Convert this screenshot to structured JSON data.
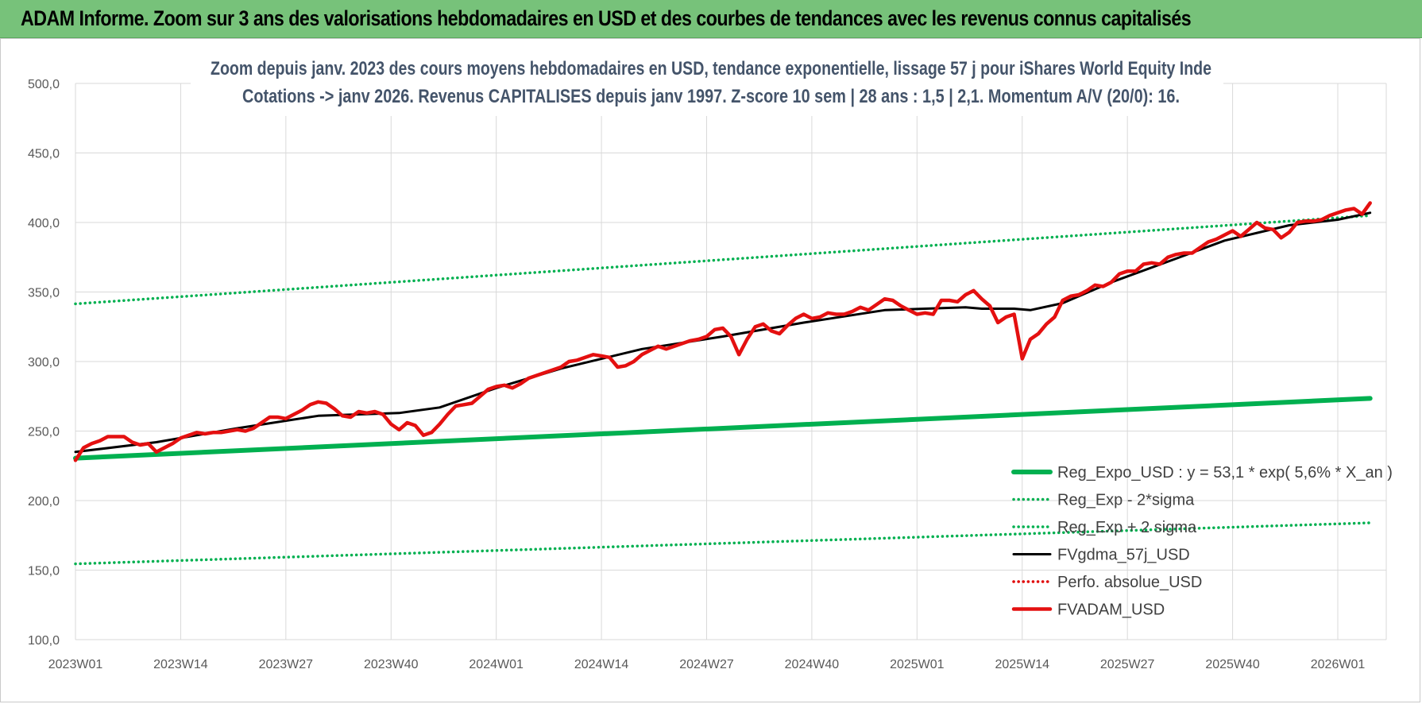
{
  "banner": {
    "title": "ADAM Informe. Zoom sur 3 ans des valorisations hebdomadaires en USD et des courbes de tendances avec les revenus connus capitalisés"
  },
  "colors": {
    "banner_bg": "#77c27a",
    "reg_expo": "#00b050",
    "fv_gdma": "#000000",
    "perfo_abs": "#e00000",
    "fv_adam": "#e41010",
    "title_text": "#44546a"
  },
  "chart_data": {
    "type": "line",
    "title_lines": [
      "Zoom depuis janv. 2023 des cours moyens hebdomadaires en USD, tendance exponentielle, lissage 57 j pour iShares World Equity Inde",
      "Cotations -> janv 2026. Revenus CAPITALISES depuis janv 1997. Z-score 10 sem | 28 ans : 1,5 | 2,1. Momentum A/V (20/0): 16."
    ],
    "ylim": [
      100,
      500
    ],
    "y_ticks": [
      "500,0",
      "450,0",
      "400,0",
      "350,0",
      "300,0",
      "250,0",
      "200,0",
      "150,0",
      "100,0"
    ],
    "y_tick_values": [
      500,
      450,
      400,
      350,
      300,
      250,
      200,
      150,
      100
    ],
    "x_ticks": [
      "2023W01",
      "2023W14",
      "2023W27",
      "2023W40",
      "2024W01",
      "2024W14",
      "2024W27",
      "2024W40",
      "2025W01",
      "2025W14",
      "2025W27",
      "2025W40",
      "2026W01"
    ],
    "x_tick_weeks": [
      0,
      13,
      26,
      39,
      52,
      65,
      78,
      91,
      104,
      117,
      130,
      143,
      156
    ],
    "n_weeks": 160,
    "grid": true,
    "legend_position": "bottom-right",
    "series": [
      {
        "name": "Reg_Expo_USD : y = 53,1 * exp( 5,6% *  X_an )",
        "style": "thick-solid",
        "color": "#00b050",
        "x": [
          0,
          160
        ],
        "values": [
          230.5,
          273.5
        ]
      },
      {
        "name": "Reg_Exp - 2*sigma",
        "style": "dotted",
        "color": "#00b050",
        "x": [
          0,
          160
        ],
        "values": [
          154.5,
          184.0
        ]
      },
      {
        "name": "Reg_Exp + 2 sigma",
        "style": "dotted",
        "color": "#00b050",
        "x": [
          0,
          160
        ],
        "values": [
          341.5,
          405.0
        ]
      },
      {
        "name": "FVgdma_57j_USD",
        "style": "solid",
        "color": "#000000",
        "x": [
          0,
          10,
          20,
          30,
          40,
          45,
          52,
          60,
          70,
          80,
          90,
          100,
          110,
          112,
          116,
          118,
          122,
          128,
          136,
          142,
          150,
          156,
          160
        ],
        "values": [
          235,
          242,
          252,
          261,
          263,
          267,
          281,
          295,
          309,
          318,
          328,
          337,
          339,
          338,
          338,
          337,
          342,
          357,
          374,
          387,
          398,
          402,
          407
        ]
      },
      {
        "name": "Perfo. absolue_USD",
        "style": "dotted",
        "color": "#e00000",
        "x": [],
        "values": []
      },
      {
        "name": "FVADAM_USD",
        "style": "thick-solid",
        "color": "#e41010",
        "x": [
          0,
          1,
          2,
          3,
          4,
          5,
          6,
          7,
          8,
          9,
          10,
          11,
          12,
          13,
          14,
          15,
          16,
          17,
          18,
          19,
          20,
          21,
          22,
          23,
          24,
          25,
          26,
          27,
          28,
          29,
          30,
          31,
          32,
          33,
          34,
          35,
          36,
          37,
          38,
          39,
          40,
          41,
          42,
          43,
          44,
          45,
          46,
          47,
          48,
          49,
          50,
          51,
          52,
          53,
          54,
          55,
          56,
          57,
          58,
          59,
          60,
          61,
          62,
          63,
          64,
          65,
          66,
          67,
          68,
          69,
          70,
          71,
          72,
          73,
          74,
          75,
          76,
          77,
          78,
          79,
          80,
          81,
          82,
          83,
          84,
          85,
          86,
          87,
          88,
          89,
          90,
          91,
          92,
          93,
          94,
          95,
          96,
          97,
          98,
          99,
          100,
          101,
          102,
          103,
          104,
          105,
          106,
          107,
          108,
          109,
          110,
          111,
          112,
          113,
          114,
          115,
          116,
          117,
          118,
          119,
          120,
          121,
          122,
          123,
          124,
          125,
          126,
          127,
          128,
          129,
          130,
          131,
          132,
          133,
          134,
          135,
          136,
          137,
          138,
          139,
          140,
          141,
          142,
          143,
          144,
          145,
          146,
          147,
          148,
          149,
          150,
          151,
          152,
          153,
          154,
          155,
          156,
          157,
          158,
          159,
          160
        ],
        "values": [
          229,
          238,
          241,
          243,
          246,
          246,
          246,
          242,
          240,
          241,
          235,
          238,
          241,
          245,
          247,
          249,
          248,
          249,
          249,
          250,
          251,
          250,
          252,
          256,
          260,
          260,
          259,
          262,
          265,
          269,
          271,
          270,
          266,
          261,
          260,
          264,
          263,
          264,
          262,
          255,
          251,
          256,
          254,
          247,
          249,
          255,
          262,
          268,
          269,
          270,
          275,
          280,
          282,
          283,
          281,
          284,
          288,
          290,
          292,
          294,
          296,
          300,
          301,
          303,
          305,
          304,
          303,
          296,
          297,
          300,
          305,
          308,
          311,
          309,
          311,
          313,
          315,
          316,
          318,
          323,
          324,
          318,
          305,
          316,
          325,
          327,
          322,
          320,
          326,
          331,
          334,
          331,
          332,
          335,
          334,
          334,
          336,
          339,
          337,
          341,
          345,
          344,
          340,
          337,
          334,
          335,
          334,
          344,
          344,
          343,
          348,
          351,
          345,
          340,
          328,
          332,
          334,
          302,
          316,
          320,
          327,
          332,
          344,
          347,
          348,
          351,
          355,
          354,
          357,
          363,
          365,
          365,
          370,
          371,
          370,
          375,
          377,
          378,
          378,
          382,
          386,
          388,
          391,
          394,
          390,
          395,
          400,
          396,
          395,
          389,
          393,
          400,
          401,
          401,
          402,
          405,
          407,
          409,
          410,
          406,
          414
        ]
      }
    ]
  }
}
